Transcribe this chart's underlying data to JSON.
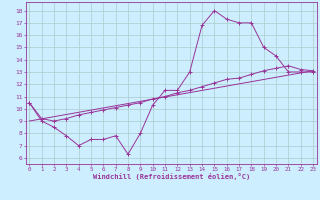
{
  "xlabel": "Windchill (Refroidissement éolien,°C)",
  "background_color": "#cceeff",
  "grid_color": "#aacccc",
  "line_color": "#993399",
  "x_ticks": [
    0,
    1,
    2,
    3,
    4,
    5,
    6,
    7,
    8,
    9,
    10,
    11,
    12,
    13,
    14,
    15,
    16,
    17,
    18,
    19,
    20,
    21,
    22,
    23
  ],
  "y_ticks": [
    6,
    7,
    8,
    9,
    10,
    11,
    12,
    13,
    14,
    15,
    16,
    17,
    18
  ],
  "ylim": [
    5.5,
    18.7
  ],
  "xlim": [
    -0.3,
    23.3
  ],
  "line1_x": [
    0,
    1,
    2,
    3,
    4,
    5,
    6,
    7,
    8,
    9,
    10,
    11,
    12,
    13,
    14,
    15,
    16,
    17,
    18,
    19,
    20,
    21,
    22,
    23
  ],
  "line1_y": [
    10.5,
    9.0,
    8.5,
    7.8,
    7.0,
    7.5,
    7.5,
    7.8,
    6.3,
    8.0,
    10.3,
    11.5,
    11.5,
    13.0,
    16.8,
    18.0,
    17.3,
    17.0,
    17.0,
    15.0,
    14.3,
    13.0,
    13.0,
    13.0
  ],
  "line2_x": [
    0,
    1,
    2,
    3,
    4,
    5,
    6,
    7,
    8,
    9,
    10,
    11,
    12,
    13,
    14,
    15,
    16,
    17,
    18,
    19,
    20,
    21,
    22,
    23
  ],
  "line2_y": [
    10.5,
    9.2,
    9.0,
    9.2,
    9.5,
    9.7,
    9.9,
    10.1,
    10.3,
    10.5,
    10.8,
    11.0,
    11.3,
    11.5,
    11.8,
    12.1,
    12.4,
    12.5,
    12.8,
    13.1,
    13.3,
    13.5,
    13.2,
    13.1
  ],
  "line3_x": [
    0,
    23
  ],
  "line3_y": [
    9.0,
    13.1
  ]
}
